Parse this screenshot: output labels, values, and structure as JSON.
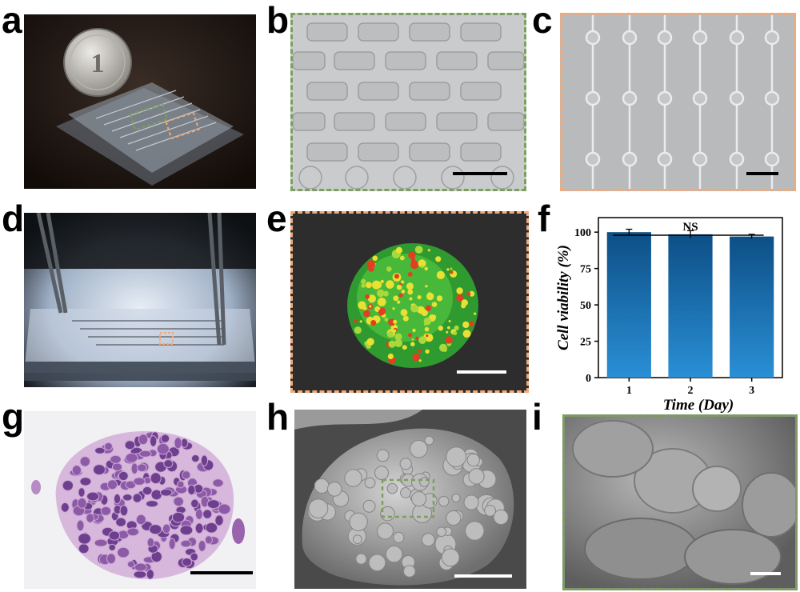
{
  "panels": {
    "a": {
      "letter": "a",
      "coin_text": "1"
    },
    "b": {
      "letter": "b"
    },
    "c": {
      "letter": "c"
    },
    "d": {
      "letter": "d"
    },
    "e": {
      "letter": "e"
    },
    "f": {
      "letter": "f"
    },
    "g": {
      "letter": "g"
    },
    "h": {
      "letter": "h"
    },
    "i": {
      "letter": "i"
    }
  },
  "colors": {
    "green_frame": "#7aa05a",
    "orange_frame": "#f2a978",
    "bar_top": "#0d4f86",
    "bar_bottom": "#2a8fd6"
  },
  "chart_data": {
    "type": "bar",
    "categories": [
      "1",
      "2",
      "3"
    ],
    "values": [
      100,
      98.5,
      97
    ],
    "errors": [
      2.0,
      2.5,
      1.5
    ],
    "title": "",
    "xlabel": "Time (Day)",
    "ylabel": "Cell viability (%)",
    "ylim": [
      0,
      110
    ],
    "yticks": [
      0,
      25,
      50,
      75,
      100
    ],
    "annotation": "NS",
    "grid": false,
    "legend": "none"
  }
}
